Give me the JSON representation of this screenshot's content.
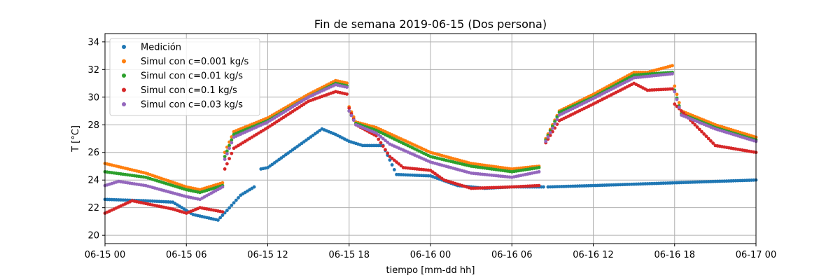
{
  "chart_data": {
    "type": "scatter",
    "title": "Fin de semana 2019-06-15 (Dos persona)",
    "xlabel": "tiempo [mm-dd hh]",
    "ylabel": "T [°C]",
    "xlim": [
      "2019-06-15 00:00",
      "2019-06-17 00:00"
    ],
    "ylim": [
      19.4,
      34.6
    ],
    "x_ticks": [
      "06-15 00",
      "06-15 06",
      "06-15 12",
      "06-15 18",
      "06-16 00",
      "06-16 06",
      "06-16 12",
      "06-16 18",
      "06-17 00"
    ],
    "y_ticks": [
      20,
      22,
      24,
      26,
      28,
      30,
      32,
      34
    ],
    "grid": true,
    "legend_position": "top-left",
    "colors": {
      "Medición": "#1f77b4",
      "Simul con c=0.001 kg/s": "#ff7f0e",
      "Simul con c=0.01 kg/s": "#2ca02c",
      "Simul con c=0.1 kg/s": "#d62728",
      "Simul con c=0.03 kg/s": "#9467bd"
    },
    "series": [
      {
        "name": "Medición",
        "gaps": [
          [
            "06-15 11:00",
            "06-15 11:30"
          ],
          [
            "06-16 08:20",
            "06-16 08:40"
          ]
        ],
        "knots": [
          [
            "06-15 00:00",
            22.6
          ],
          [
            "06-15 03:00",
            22.5
          ],
          [
            "06-15 05:00",
            22.4
          ],
          [
            "06-15 06:30",
            21.5
          ],
          [
            "06-15 08:20",
            21.1
          ],
          [
            "06-15 09:00",
            21.8
          ],
          [
            "06-15 10:00",
            22.9
          ],
          [
            "06-15 11:00",
            23.5
          ],
          [
            "06-15 11:30",
            24.8
          ],
          [
            "06-15 12:00",
            24.9
          ],
          [
            "06-15 14:00",
            26.3
          ],
          [
            "06-15 16:00",
            27.7
          ],
          [
            "06-15 17:00",
            27.3
          ],
          [
            "06-15 18:00",
            26.8
          ],
          [
            "06-15 19:00",
            26.5
          ],
          [
            "06-15 20:30",
            26.5
          ],
          [
            "06-15 21:30",
            24.4
          ],
          [
            "06-16 00:00",
            24.3
          ],
          [
            "06-16 02:00",
            23.6
          ],
          [
            "06-16 04:00",
            23.4
          ],
          [
            "06-16 06:00",
            23.5
          ],
          [
            "06-16 08:20",
            23.5
          ],
          [
            "06-16 08:40",
            23.5
          ],
          [
            "06-16 12:00",
            23.6
          ],
          [
            "06-16 18:00",
            23.8
          ],
          [
            "06-17 00:00",
            24.0
          ]
        ]
      },
      {
        "name": "Simul con c=0.001 kg/s",
        "gaps": [
          [
            "06-15 08:40",
            "06-15 08:50"
          ],
          [
            "06-16 08:00",
            "06-16 08:30"
          ]
        ],
        "knots": [
          [
            "06-15 00:00",
            25.2
          ],
          [
            "06-15 03:00",
            24.5
          ],
          [
            "06-15 06:00",
            23.5
          ],
          [
            "06-15 07:00",
            23.3
          ],
          [
            "06-15 08:40",
            23.8
          ],
          [
            "06-15 08:50",
            26.0
          ],
          [
            "06-15 09:30",
            27.5
          ],
          [
            "06-15 12:00",
            28.5
          ],
          [
            "06-15 15:00",
            30.2
          ],
          [
            "06-15 17:00",
            31.2
          ],
          [
            "06-15 17:55",
            31.0
          ],
          [
            "06-15 18:00",
            29.3
          ],
          [
            "06-15 18:30",
            28.2
          ],
          [
            "06-15 20:00",
            27.8
          ],
          [
            "06-16 00:00",
            26.0
          ],
          [
            "06-16 03:00",
            25.2
          ],
          [
            "06-16 06:00",
            24.8
          ],
          [
            "06-16 08:00",
            25.0
          ],
          [
            "06-16 08:30",
            27.0
          ],
          [
            "06-16 09:30",
            29.0
          ],
          [
            "06-16 12:00",
            30.2
          ],
          [
            "06-16 15:00",
            31.8
          ],
          [
            "06-16 16:00",
            31.8
          ],
          [
            "06-16 17:55",
            32.3
          ],
          [
            "06-16 18:00",
            30.8
          ],
          [
            "06-16 18:30",
            29.0
          ],
          [
            "06-16 21:00",
            28.0
          ],
          [
            "06-17 00:00",
            27.1
          ]
        ]
      },
      {
        "name": "Simul con c=0.01 kg/s",
        "gaps": [
          [
            "06-15 08:40",
            "06-15 08:50"
          ],
          [
            "06-16 08:00",
            "06-16 08:30"
          ]
        ],
        "knots": [
          [
            "06-15 00:00",
            24.6
          ],
          [
            "06-15 03:00",
            24.2
          ],
          [
            "06-15 06:00",
            23.3
          ],
          [
            "06-15 07:00",
            23.1
          ],
          [
            "06-15 08:40",
            23.6
          ],
          [
            "06-15 08:50",
            25.7
          ],
          [
            "06-15 09:30",
            27.3
          ],
          [
            "06-15 12:00",
            28.3
          ],
          [
            "06-15 15:00",
            30.0
          ],
          [
            "06-15 17:00",
            31.0
          ],
          [
            "06-15 17:55",
            30.8
          ],
          [
            "06-15 18:00",
            29.0
          ],
          [
            "06-15 18:30",
            28.1
          ],
          [
            "06-15 20:00",
            27.6
          ],
          [
            "06-16 00:00",
            25.7
          ],
          [
            "06-16 03:00",
            25.0
          ],
          [
            "06-16 06:00",
            24.6
          ],
          [
            "06-16 08:00",
            24.9
          ],
          [
            "06-16 08:30",
            26.9
          ],
          [
            "06-16 09:30",
            28.9
          ],
          [
            "06-16 12:00",
            30.0
          ],
          [
            "06-16 15:00",
            31.6
          ],
          [
            "06-16 17:55",
            31.8
          ],
          [
            "06-16 18:00",
            30.5
          ],
          [
            "06-16 18:30",
            28.8
          ],
          [
            "06-16 21:00",
            27.8
          ],
          [
            "06-17 00:00",
            26.9
          ]
        ]
      },
      {
        "name": "Simul con c=0.1 kg/s",
        "gaps": [
          [
            "06-15 08:40",
            "06-15 08:50"
          ],
          [
            "06-16 08:00",
            "06-16 08:30"
          ]
        ],
        "knots": [
          [
            "06-15 00:00",
            21.6
          ],
          [
            "06-15 02:00",
            22.5
          ],
          [
            "06-15 04:00",
            22.1
          ],
          [
            "06-15 05:00",
            21.9
          ],
          [
            "06-15 06:00",
            21.6
          ],
          [
            "06-15 07:00",
            22.0
          ],
          [
            "06-15 08:40",
            21.7
          ],
          [
            "06-15 08:50",
            24.8
          ],
          [
            "06-15 09:30",
            26.3
          ],
          [
            "06-15 12:00",
            27.8
          ],
          [
            "06-15 15:00",
            29.7
          ],
          [
            "06-15 17:00",
            30.4
          ],
          [
            "06-15 17:55",
            30.2
          ],
          [
            "06-15 18:00",
            29.2
          ],
          [
            "06-15 18:30",
            28.0
          ],
          [
            "06-15 20:00",
            27.2
          ],
          [
            "06-15 21:00",
            25.7
          ],
          [
            "06-15 22:00",
            24.9
          ],
          [
            "06-16 00:00",
            24.7
          ],
          [
            "06-16 01:00",
            24.0
          ],
          [
            "06-16 03:00",
            23.4
          ],
          [
            "06-16 06:00",
            23.5
          ],
          [
            "06-16 08:00",
            23.6
          ],
          [
            "06-16 08:30",
            26.7
          ],
          [
            "06-16 09:30",
            28.3
          ],
          [
            "06-16 12:00",
            29.5
          ],
          [
            "06-16 15:00",
            31.0
          ],
          [
            "06-16 16:00",
            30.5
          ],
          [
            "06-16 17:55",
            30.6
          ],
          [
            "06-16 18:00",
            29.5
          ],
          [
            "06-16 19:00",
            28.5
          ],
          [
            "06-16 21:00",
            26.5
          ],
          [
            "06-17 00:00",
            26.0
          ]
        ]
      },
      {
        "name": "Simul con c=0.03 kg/s",
        "gaps": [
          [
            "06-15 08:40",
            "06-15 08:50"
          ],
          [
            "06-16 08:00",
            "06-16 08:30"
          ]
        ],
        "knots": [
          [
            "06-15 00:00",
            23.6
          ],
          [
            "06-15 01:00",
            23.9
          ],
          [
            "06-15 03:00",
            23.6
          ],
          [
            "06-15 06:00",
            22.8
          ],
          [
            "06-15 07:00",
            22.6
          ],
          [
            "06-15 08:40",
            23.5
          ],
          [
            "06-15 08:50",
            25.5
          ],
          [
            "06-15 09:30",
            27.1
          ],
          [
            "06-15 12:00",
            28.2
          ],
          [
            "06-15 15:00",
            30.0
          ],
          [
            "06-15 17:00",
            30.9
          ],
          [
            "06-15 17:55",
            30.7
          ],
          [
            "06-15 18:00",
            29.0
          ],
          [
            "06-15 18:30",
            28.0
          ],
          [
            "06-15 20:00",
            27.4
          ],
          [
            "06-15 21:00",
            26.6
          ],
          [
            "06-16 00:00",
            25.3
          ],
          [
            "06-16 03:00",
            24.5
          ],
          [
            "06-16 06:00",
            24.2
          ],
          [
            "06-16 08:00",
            24.6
          ],
          [
            "06-16 08:30",
            26.8
          ],
          [
            "06-16 09:30",
            28.7
          ],
          [
            "06-16 12:00",
            29.9
          ],
          [
            "06-16 15:00",
            31.4
          ],
          [
            "06-16 17:55",
            31.7
          ],
          [
            "06-16 18:00",
            30.4
          ],
          [
            "06-16 18:30",
            28.7
          ],
          [
            "06-16 21:00",
            27.7
          ],
          [
            "06-17 00:00",
            26.8
          ]
        ]
      }
    ]
  }
}
